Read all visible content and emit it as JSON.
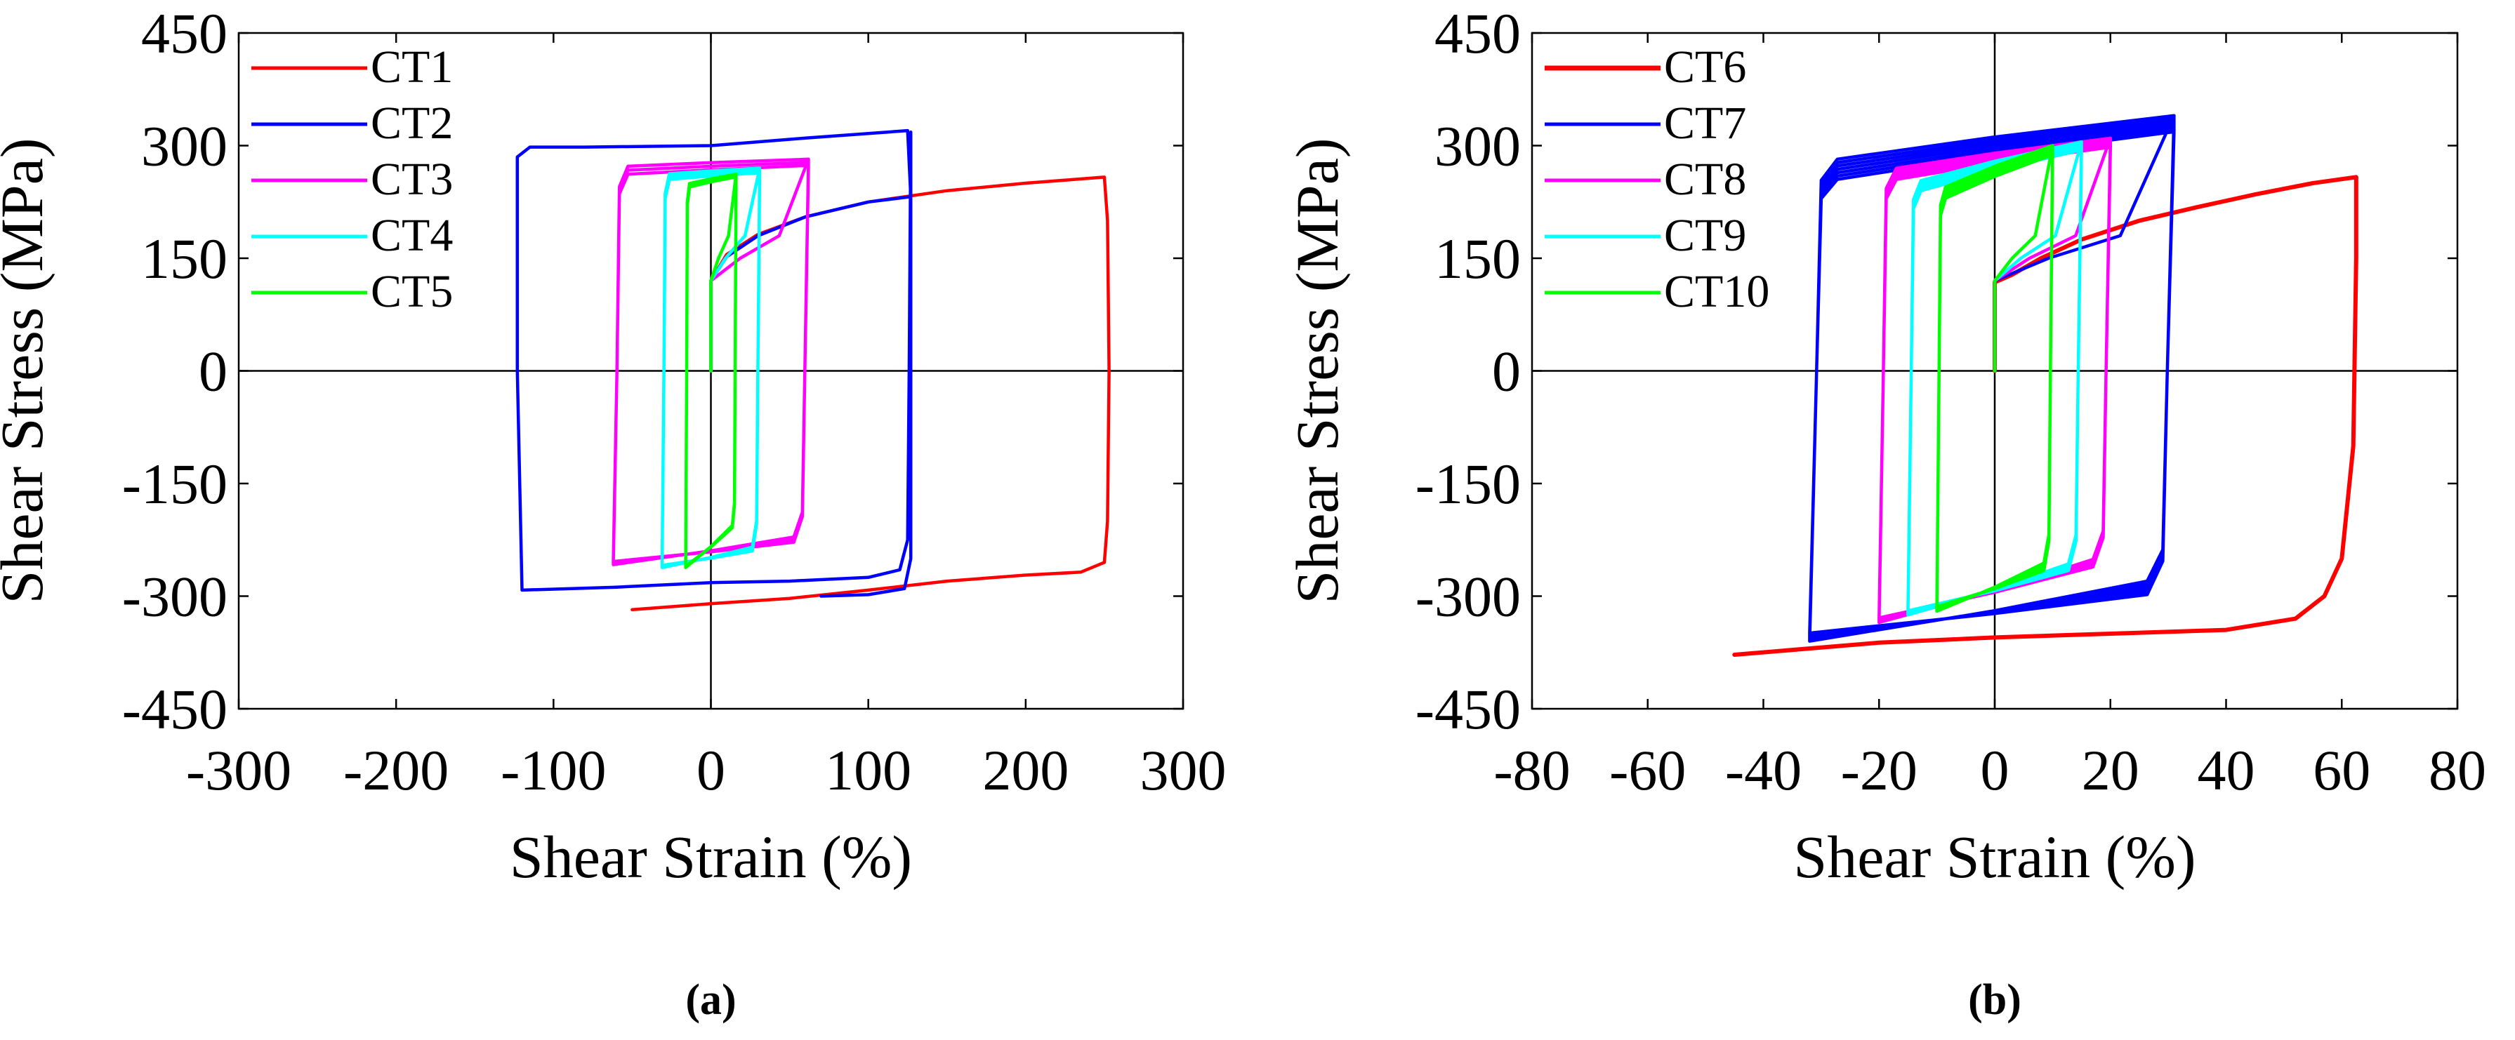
{
  "chart_data": [
    {
      "type": "line",
      "panel": "(a)",
      "xlabel": "Shear Strain  (%)",
      "ylabel": "Shear Stress (MPa)",
      "xlim": [
        -300,
        300
      ],
      "ylim": [
        -450,
        450
      ],
      "xticks": [
        "-300",
        "-200",
        "-100",
        "0",
        "100",
        "200",
        "300"
      ],
      "yticks": [
        "450",
        "300",
        "150",
        "0",
        "-150",
        "-300",
        "-450"
      ],
      "legend_position": "top-left",
      "series": [
        {
          "name": "CT1",
          "color": "#ff0000",
          "loop": false,
          "points": [
            [
              0,
              0
            ],
            [
              0,
              120
            ],
            [
              10,
              155
            ],
            [
              30,
              182
            ],
            [
              60,
              205
            ],
            [
              100,
              225
            ],
            [
              150,
              240
            ],
            [
              200,
              250
            ],
            [
              250,
              258
            ],
            [
              252,
              200
            ],
            [
              253,
              0
            ],
            [
              252,
              -200
            ],
            [
              250,
              -255
            ],
            [
              235,
              -268
            ],
            [
              200,
              -272
            ],
            [
              150,
              -280
            ],
            [
              100,
              -292
            ],
            [
              50,
              -303
            ],
            [
              0,
              -310
            ],
            [
              -50,
              -318
            ]
          ]
        },
        {
          "name": "CT2",
          "color": "#0000ff",
          "loop": false,
          "points": [
            [
              0,
              0
            ],
            [
              0,
              120
            ],
            [
              10,
              152
            ],
            [
              30,
              180
            ],
            [
              60,
              205
            ],
            [
              100,
              225
            ],
            [
              127,
              232
            ],
            [
              127,
              318
            ],
            [
              126,
              0
            ],
            [
              125,
              -225
            ],
            [
              120,
              -265
            ],
            [
              100,
              -275
            ],
            [
              50,
              -280
            ],
            [
              0,
              -282
            ],
            [
              -60,
              -288
            ],
            [
              -120,
              -292
            ],
            [
              -123,
              0
            ],
            [
              -123,
              285
            ],
            [
              -115,
              298
            ],
            [
              -80,
              298
            ],
            [
              0,
              300
            ],
            [
              60,
              310
            ],
            [
              125,
              320
            ],
            [
              127,
              232
            ],
            [
              127,
              -250
            ],
            [
              123,
              -290
            ],
            [
              100,
              -298
            ],
            [
              70,
              -300
            ]
          ]
        },
        {
          "name": "CT3",
          "color": "#ff00ff",
          "loop": true,
          "xmin": -62,
          "xmax": 62,
          "top": 262,
          "top_end": 282,
          "bot": -258,
          "bot_end": -212,
          "cycles": 3,
          "spread": 7
        },
        {
          "name": "CT4",
          "color": "#00ffff",
          "loop": true,
          "xmin": -31,
          "xmax": 31,
          "top": 255,
          "top_end": 270,
          "bot": -262,
          "bot_end": -228,
          "cycles": 4,
          "spread": 5
        },
        {
          "name": "CT5",
          "color": "#00ff00",
          "loop": true,
          "xmin": -16,
          "xmax": 16,
          "top": 245,
          "top_end": 262,
          "bot": -262,
          "bot_end": -192,
          "cycles": 8,
          "spread": 3
        }
      ]
    },
    {
      "type": "line",
      "panel": "(b)",
      "xlabel": "Shear Strain  (%)",
      "ylabel": "Shear Stress (MPa)",
      "xlim": [
        -80,
        80
      ],
      "ylim": [
        -450,
        450
      ],
      "xticks": [
        "-80",
        "-60",
        "-40",
        "-20",
        "0",
        "20",
        "40",
        "60",
        "80"
      ],
      "yticks": [
        "450",
        "300",
        "150",
        "0",
        "-150",
        "-300",
        "-450"
      ],
      "legend_position": "top-left",
      "series": [
        {
          "name": "CT6",
          "color": "#ff0000",
          "loop": false,
          "points": [
            [
              0,
              0
            ],
            [
              0,
              118
            ],
            [
              3,
              128
            ],
            [
              8,
              150
            ],
            [
              15,
              175
            ],
            [
              25,
              200
            ],
            [
              35,
              218
            ],
            [
              45,
              235
            ],
            [
              55,
              250
            ],
            [
              62.5,
              258
            ],
            [
              62.5,
              150
            ],
            [
              62,
              -100
            ],
            [
              60,
              -250
            ],
            [
              57,
              -300
            ],
            [
              52,
              -330
            ],
            [
              40,
              -345
            ],
            [
              20,
              -350
            ],
            [
              0,
              -355
            ],
            [
              -20,
              -362
            ],
            [
              -45,
              -378
            ]
          ]
        },
        {
          "name": "CT7",
          "color": "#0000ff",
          "loop": true,
          "xmin": -32,
          "xmax": 31,
          "top": 255,
          "top_end": 340,
          "bot": -360,
          "bot_end": -260,
          "cycles": 7,
          "spread": 18
        },
        {
          "name": "CT8",
          "color": "#ff00ff",
          "loop": true,
          "xmin": -20,
          "xmax": 20,
          "top": 255,
          "top_end": 310,
          "bot": -335,
          "bot_end": -230,
          "cycles": 8,
          "spread": 10
        },
        {
          "name": "CT9",
          "color": "#00ffff",
          "loop": true,
          "xmin": -15,
          "xmax": 15,
          "top": 240,
          "top_end": 305,
          "bot": -325,
          "bot_end": -240,
          "cycles": 8,
          "spread": 9
        },
        {
          "name": "CT10",
          "color": "#00ff00",
          "loop": true,
          "xmin": -10,
          "xmax": 10,
          "top": 230,
          "top_end": 300,
          "bot": -320,
          "bot_end": -240,
          "cycles": 8,
          "spread": 10
        }
      ]
    }
  ]
}
